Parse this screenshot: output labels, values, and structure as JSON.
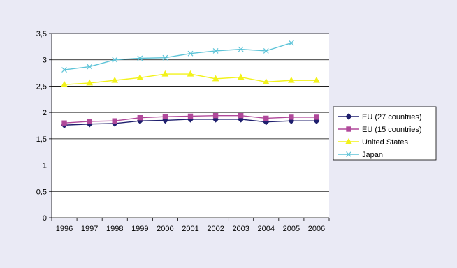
{
  "chart_data": {
    "type": "line",
    "title": "",
    "xlabel": "",
    "ylabel": "",
    "categories": [
      "1996",
      "1997",
      "1998",
      "1999",
      "2000",
      "2001",
      "2002",
      "2003",
      "2004",
      "2005",
      "2006"
    ],
    "ylim": [
      0,
      3.5
    ],
    "yticks": [
      0,
      0.5,
      1,
      1.5,
      2,
      2.5,
      3,
      3.5
    ],
    "ytick_labels": [
      "0",
      "0,5",
      "1",
      "1,5",
      "2",
      "2,5",
      "3",
      "3,5"
    ],
    "grid": true,
    "legend_position": "right",
    "series": [
      {
        "name": "EU (27 countries)",
        "color": "#1f1f6e",
        "marker": "diamond",
        "values": [
          1.76,
          1.78,
          1.79,
          1.84,
          1.85,
          1.87,
          1.87,
          1.87,
          1.82,
          1.84,
          1.84
        ]
      },
      {
        "name": "EU (15 countries)",
        "color": "#b0489a",
        "marker": "square",
        "values": [
          1.8,
          1.83,
          1.84,
          1.9,
          1.92,
          1.93,
          1.94,
          1.94,
          1.89,
          1.91,
          1.91
        ]
      },
      {
        "name": "United States",
        "color": "#f2f21a",
        "marker": "triangle",
        "values": [
          2.53,
          2.56,
          2.61,
          2.66,
          2.73,
          2.73,
          2.64,
          2.67,
          2.58,
          2.61,
          2.61
        ]
      },
      {
        "name": "Japan",
        "color": "#5ec4d8",
        "marker": "x",
        "values": [
          2.81,
          2.87,
          3.0,
          3.03,
          3.04,
          3.12,
          3.17,
          3.2,
          3.17,
          3.32,
          null
        ]
      }
    ]
  }
}
